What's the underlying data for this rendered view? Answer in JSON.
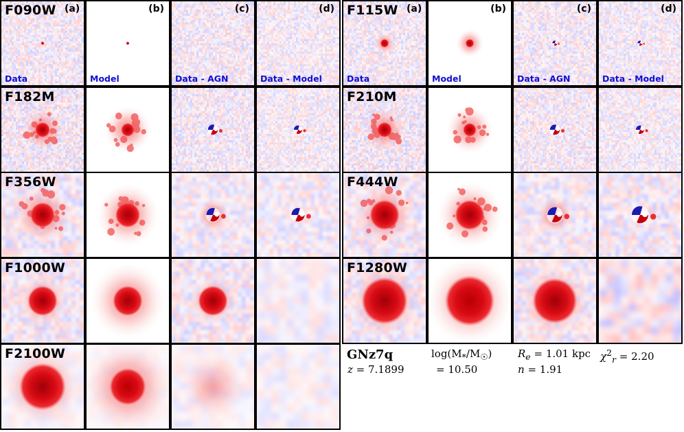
{
  "panel_letters": [
    "(a)",
    "(b)",
    "(c)",
    "(d)"
  ],
  "panel_captions": [
    "Data",
    "Model",
    "Data - AGN",
    "Data - Model"
  ],
  "filters": [
    {
      "name": "F090W",
      "letters": true,
      "captions": true
    },
    {
      "name": "F115W",
      "letters": true,
      "captions": true
    },
    {
      "name": "F182M",
      "letters": false,
      "captions": false
    },
    {
      "name": "F210M",
      "letters": false,
      "captions": false
    },
    {
      "name": "F356W",
      "letters": false,
      "captions": false
    },
    {
      "name": "F444W",
      "letters": false,
      "captions": false
    },
    {
      "name": "F1000W",
      "letters": false,
      "captions": false
    },
    {
      "name": "F1280W",
      "letters": false,
      "captions": false
    },
    {
      "name": "F2100W",
      "letters": false,
      "captions": false
    }
  ],
  "info": {
    "object": "GNz7q",
    "z_symbol": "z",
    "z_value": "7.1899",
    "mass_label": "log(M",
    "mass_sub_star": "*",
    "mass_over": "/M",
    "mass_sun": "☉",
    "mass_value": "10.50",
    "re_symbol": "R",
    "re_sub": "e",
    "re_value": "1.01 kpc",
    "n_symbol": "n",
    "n_value": "1.91",
    "chi_symbol": "χ",
    "chi_sub": "r",
    "chi_sup": "2",
    "chi_value": "2.20"
  },
  "colors": {
    "caption_blue": "#1010d0",
    "core_red": "#c4000c",
    "residual_blue": "#1d1ab0"
  }
}
